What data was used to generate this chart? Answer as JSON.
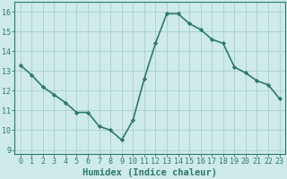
{
  "x": [
    0,
    1,
    2,
    3,
    4,
    5,
    6,
    7,
    8,
    9,
    10,
    11,
    12,
    13,
    14,
    15,
    16,
    17,
    18,
    19,
    20,
    21,
    22,
    23
  ],
  "y": [
    13.3,
    12.8,
    12.2,
    11.8,
    11.4,
    10.9,
    10.9,
    10.2,
    10.0,
    9.5,
    10.5,
    12.6,
    14.4,
    15.9,
    15.9,
    15.4,
    15.1,
    14.6,
    14.4,
    13.2,
    12.9,
    12.5,
    12.3,
    11.6
  ],
  "line_color": "#2d7a6a",
  "marker": "D",
  "marker_size": 2.2,
  "bg_color": "#ceeaea",
  "grid_color": "#a8cece",
  "xlabel": "Humidex (Indice chaleur)",
  "xlim": [
    -0.5,
    23.5
  ],
  "ylim": [
    8.8,
    16.5
  ],
  "yticks": [
    9,
    10,
    11,
    12,
    13,
    14,
    15,
    16
  ],
  "xticks": [
    0,
    1,
    2,
    3,
    4,
    5,
    6,
    7,
    8,
    9,
    10,
    11,
    12,
    13,
    14,
    15,
    16,
    17,
    18,
    19,
    20,
    21,
    22,
    23
  ],
  "tick_fontsize": 6.0,
  "label_fontsize": 7.5,
  "line_width": 1.2
}
